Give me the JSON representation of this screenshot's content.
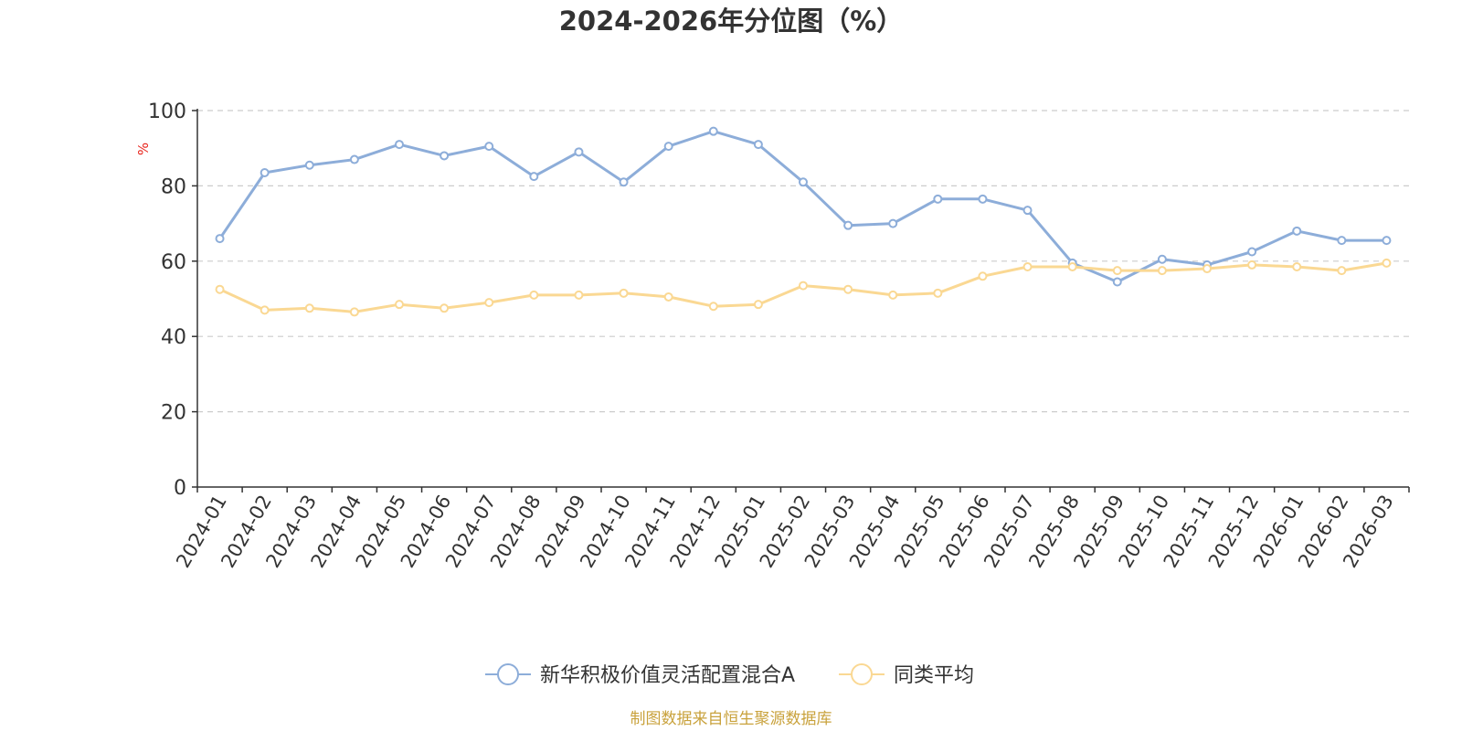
{
  "chart_data": {
    "type": "line",
    "title": "2024-2026年分位图（%）",
    "xlabel": "",
    "ylabel": "%",
    "ylim": [
      0,
      100
    ],
    "yticks": [
      0,
      20,
      40,
      60,
      80,
      100
    ],
    "grid": "horizontal-dashed",
    "legend_position": "bottom-center",
    "categories": [
      "2024-01",
      "2024-02",
      "2024-03",
      "2024-04",
      "2024-05",
      "2024-06",
      "2024-07",
      "2024-08",
      "2024-09",
      "2024-10",
      "2024-11",
      "2024-12",
      "2025-01",
      "2025-02",
      "2025-03",
      "2025-04",
      "2025-05",
      "2025-06",
      "2025-07",
      "2025-08",
      "2025-09",
      "2025-10",
      "2025-11",
      "2025-12",
      "2026-01",
      "2026-02",
      "2026-03"
    ],
    "series": [
      {
        "name": "新华积极价值灵活配置混合A",
        "color": "#8dadd9",
        "values": [
          66,
          83.5,
          85.5,
          87,
          91,
          88,
          90.5,
          82.5,
          89,
          81,
          90.5,
          94.5,
          91,
          81,
          69.5,
          70,
          76.5,
          76.5,
          73.5,
          59.5,
          54.5,
          60.5,
          59,
          62.5,
          68,
          65.5,
          65.5
        ]
      },
      {
        "name": "同类平均",
        "color": "#fad893",
        "values": [
          52.5,
          47,
          47.5,
          46.5,
          48.5,
          47.5,
          49,
          51,
          51,
          51.5,
          50.5,
          48,
          48.5,
          53.5,
          52.5,
          51,
          51.5,
          56,
          58.5,
          58.5,
          57.5,
          57.5,
          58,
          59,
          58.5,
          57.5,
          59.5
        ]
      }
    ],
    "source": "制图数据来自恒生聚源数据库",
    "source_color": "#c9a23c",
    "ylabel_color": "#e8231b"
  }
}
